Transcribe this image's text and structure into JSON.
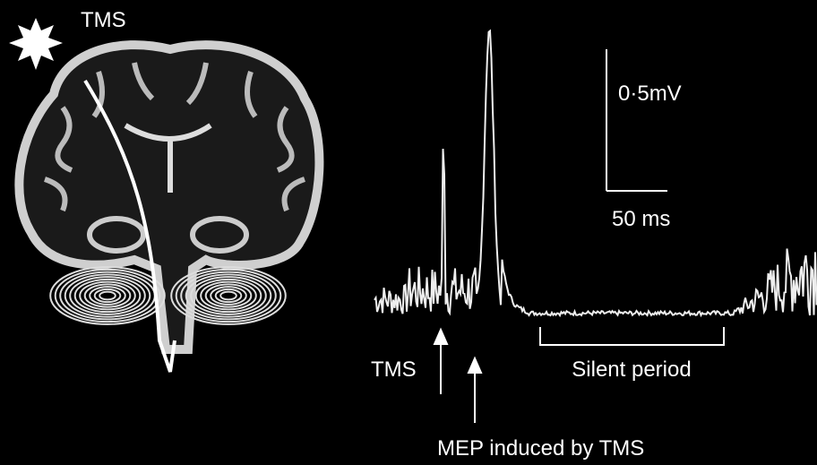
{
  "brain": {
    "label": "TMS"
  },
  "trace": {
    "scale_bar": {
      "amplitude": "0·5mV",
      "time": "50 ms"
    },
    "annotations": {
      "stimulus": "TMS",
      "silent_period": "Silent period",
      "mep": "MEP induced by TMS"
    }
  }
}
